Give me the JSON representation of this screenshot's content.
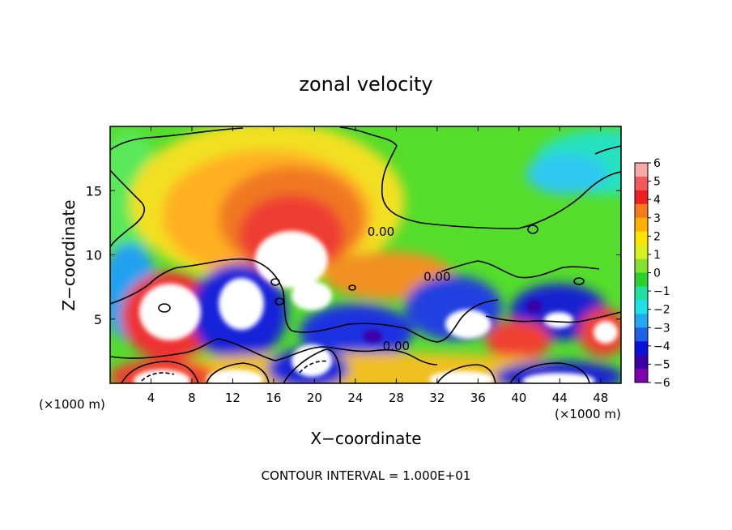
{
  "chart_data": {
    "type": "heatmap",
    "title": "zonal velocity",
    "xlabel": "X−coordinate",
    "ylabel": "Z−coordinate",
    "x_unit_left": "(×1000 m)",
    "x_unit_right": "(×1000 m)",
    "footer": "CONTOUR INTERVAL = 1.000E+01",
    "xlim": [
      0,
      50
    ],
    "ylim": [
      0,
      20
    ],
    "x_ticks": [
      4,
      8,
      12,
      16,
      20,
      24,
      28,
      32,
      36,
      40,
      44,
      48
    ],
    "x_tick_labels": [
      "4",
      "8",
      "12",
      "16",
      "20",
      "24",
      "28",
      "32",
      "36",
      "40",
      "44",
      "48"
    ],
    "y_ticks": [
      5,
      10,
      15
    ],
    "y_tick_labels": [
      "5",
      "10",
      "15"
    ],
    "colorbar": {
      "range": [
        -6,
        6
      ],
      "tick_labels": [
        "6",
        "5",
        "4",
        "3",
        "2",
        "1",
        "0",
        "−1",
        "−2",
        "−3",
        "−4",
        "−5",
        "−6"
      ],
      "colors": [
        "#f7a8a8",
        "#f25a5a",
        "#ec2020",
        "#f47a1e",
        "#ffb000",
        "#ffe400",
        "#d8f020",
        "#86e030",
        "#2bd02b",
        "#20e0a0",
        "#1ee0e8",
        "#22a8f0",
        "#2060e8",
        "#0a10d8",
        "#3a00a8",
        "#8000b0"
      ]
    },
    "contour_labels": [
      {
        "text": "0.00",
        "x": 26.5,
        "z": 11.8
      },
      {
        "text": "0.00",
        "x": 32.0,
        "z": 8.3
      },
      {
        "text": "0.00",
        "x": 28.0,
        "z": 2.9
      }
    ]
  }
}
